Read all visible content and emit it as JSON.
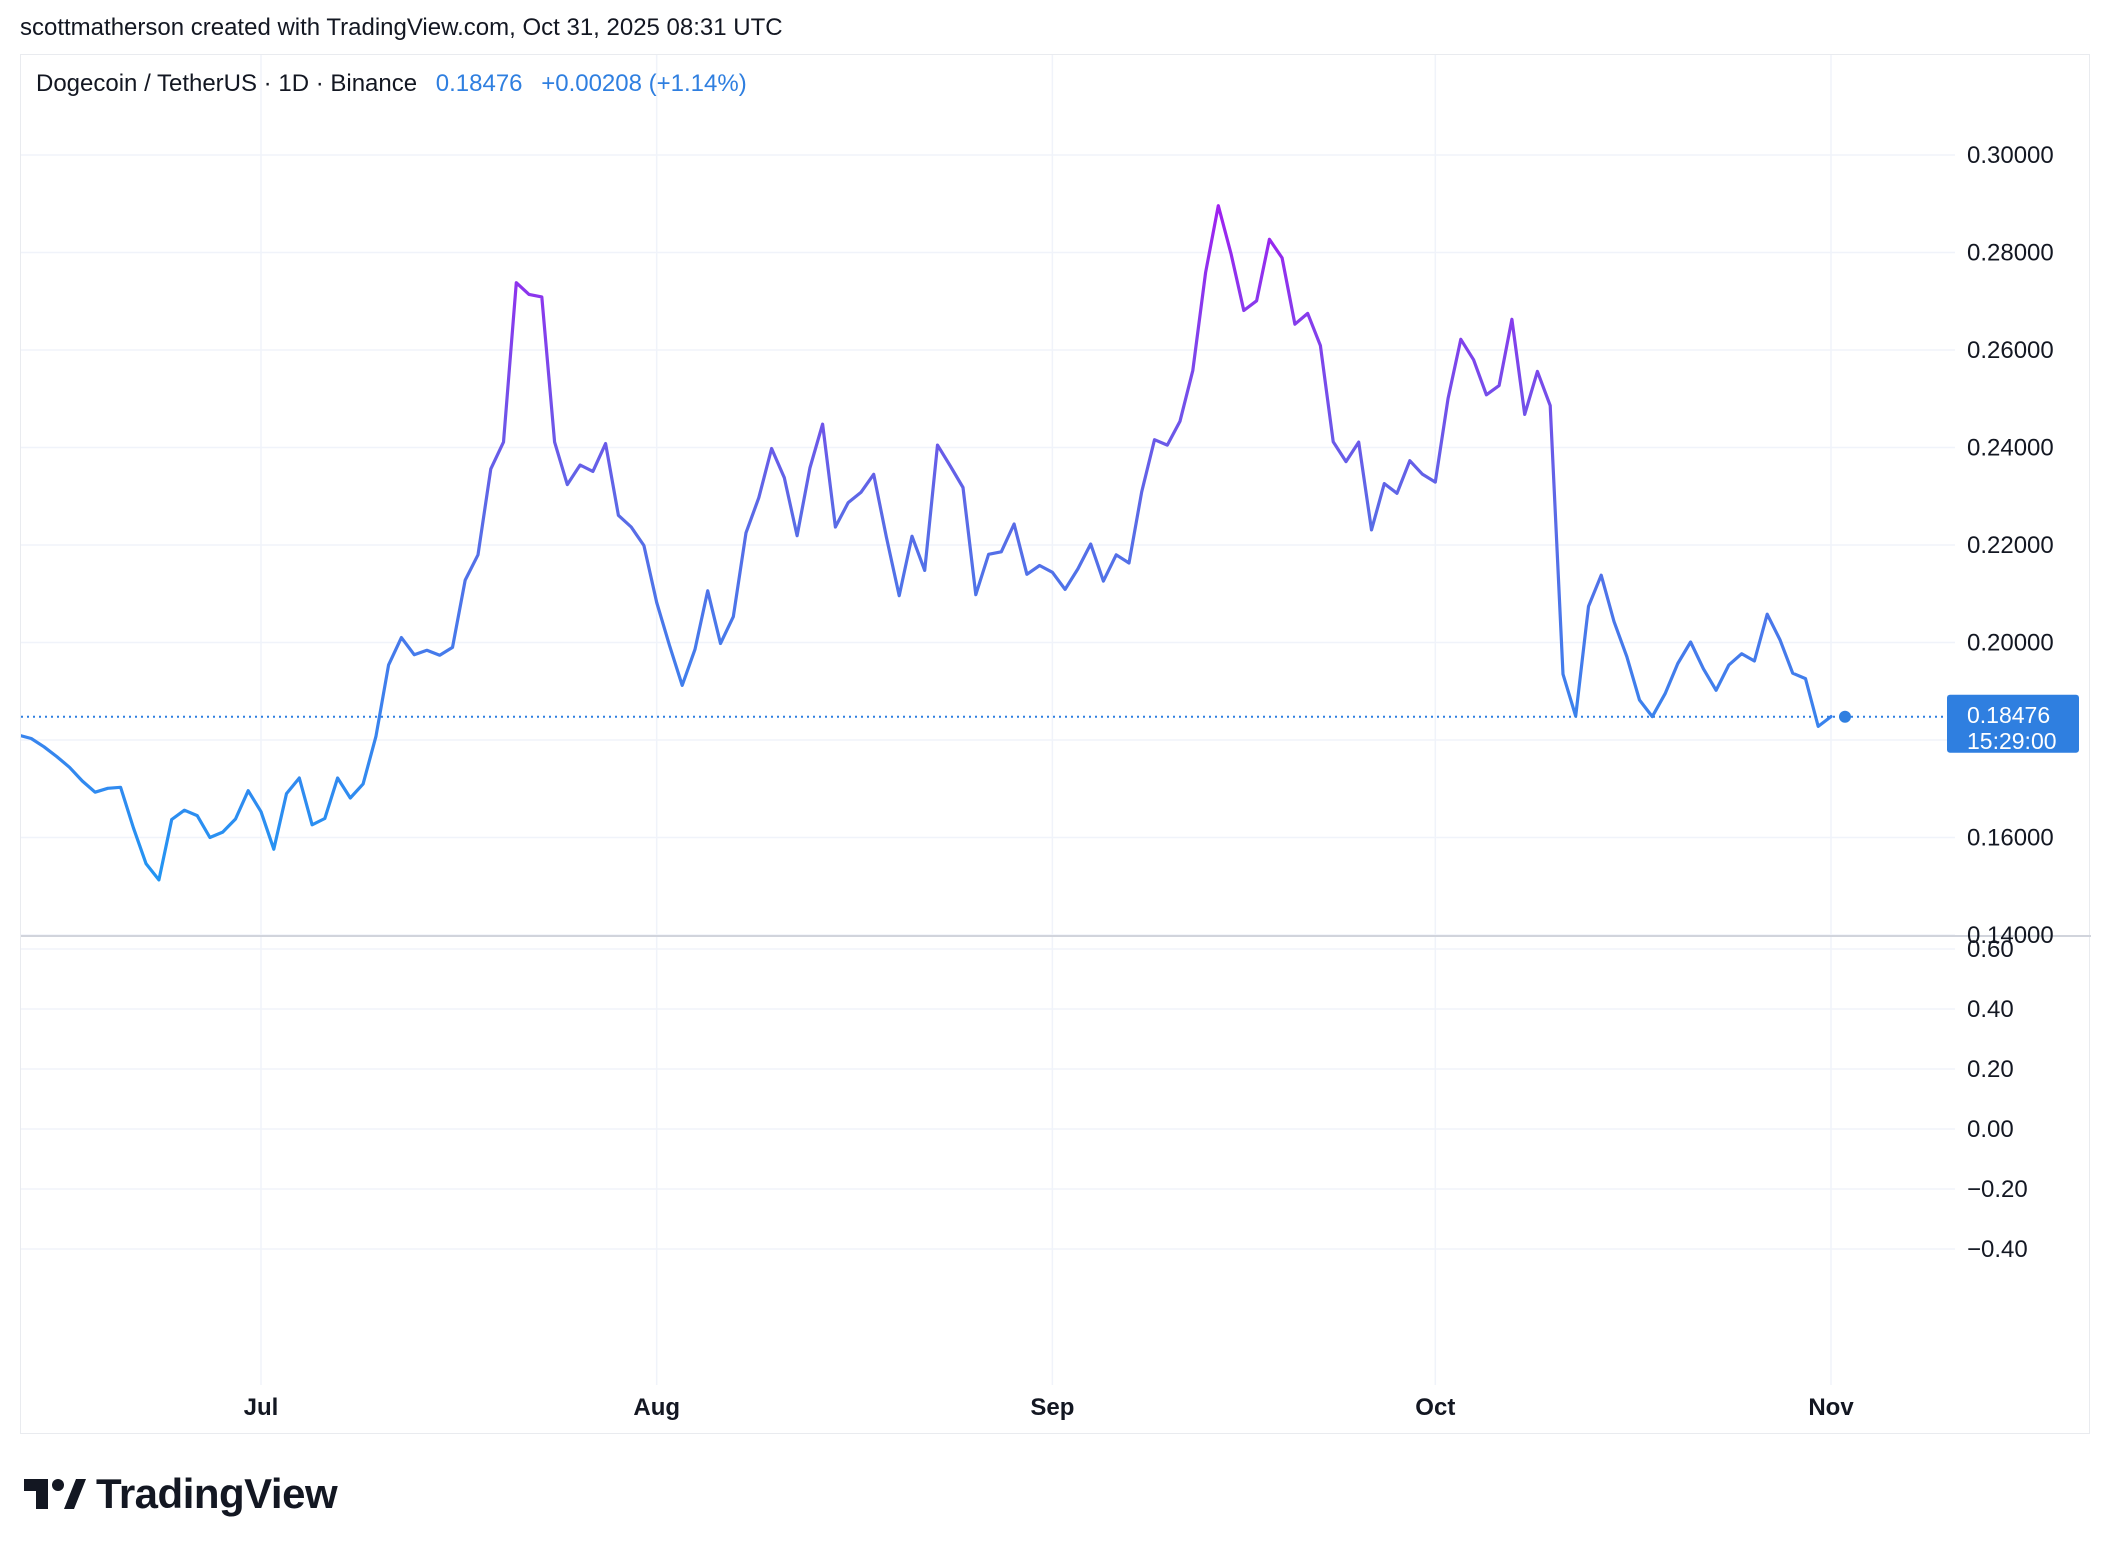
{
  "header": {
    "credit": "scottmatherson created with TradingView.com, Oct 31, 2025 08:31 UTC"
  },
  "legend": {
    "symbol": "Dogecoin / TetherUS · 1D · Binance",
    "last": "0.18476",
    "change": "+0.00208 (+1.14%)"
  },
  "price_tag": {
    "price": "0.18476",
    "countdown": "15:29:00"
  },
  "logo": {
    "text": "TradingView"
  },
  "colors": {
    "line_low": "#2196f3",
    "line_mid": "#5b6ae6",
    "line_high": "#a020f0",
    "accent": "#2f7fe0",
    "tag": "#2f7fe0",
    "grid": "#f0f3fa"
  },
  "chart_data": [
    {
      "type": "line",
      "title": "",
      "ylim": [
        0.14,
        0.3
      ],
      "y_ticks": [
        "0.30000",
        "0.28000",
        "0.26000",
        "0.24000",
        "0.22000",
        "0.20000",
        "0.16000",
        "0.14000"
      ],
      "y_tick_values": [
        0.3,
        0.28,
        0.26,
        0.24,
        0.22,
        0.2,
        0.16,
        0.14
      ],
      "x_ticks": [
        {
          "label": "Jul",
          "date": "2025-07-01"
        },
        {
          "label": "Aug",
          "date": "2025-08-01"
        },
        {
          "label": "Sep",
          "date": "2025-09-01"
        },
        {
          "label": "Oct",
          "date": "2025-10-01"
        },
        {
          "label": "Nov",
          "date": "2025-11-01"
        }
      ],
      "current_value": 0.18476,
      "series": [
        {
          "name": "",
          "start_date": "2025-06-12",
          "interval": "1D",
          "values": [
            0.181,
            0.1803,
            0.1786,
            0.1766,
            0.1744,
            0.1716,
            0.1693,
            0.1701,
            0.1703,
            0.162,
            0.1546,
            0.1513,
            0.1637,
            0.1656,
            0.1645,
            0.16,
            0.1611,
            0.1638,
            0.1696,
            0.1653,
            0.1576,
            0.169,
            0.1722,
            0.1626,
            0.1639,
            0.1722,
            0.1681,
            0.171,
            0.1807,
            0.1954,
            0.201,
            0.1975,
            0.1984,
            0.1974,
            0.199,
            0.2128,
            0.218,
            0.2356,
            0.2411,
            0.2738,
            0.2714,
            0.2709,
            0.2411,
            0.2324,
            0.2364,
            0.2351,
            0.2408,
            0.2261,
            0.2237,
            0.2199,
            0.2082,
            0.1994,
            0.1912,
            0.1986,
            0.2106,
            0.1998,
            0.2053,
            0.2225,
            0.2297,
            0.2398,
            0.2338,
            0.2219,
            0.2358,
            0.2448,
            0.2237,
            0.2287,
            0.2308,
            0.2345,
            0.2216,
            0.2096,
            0.2218,
            0.2148,
            0.2405,
            0.2362,
            0.2318,
            0.2098,
            0.2181,
            0.2186,
            0.2243,
            0.214,
            0.2158,
            0.2144,
            0.2109,
            0.2151,
            0.2202,
            0.2126,
            0.218,
            0.2163,
            0.2309,
            0.2416,
            0.2405,
            0.2454,
            0.2558,
            0.2759,
            0.2896,
            0.2797,
            0.2681,
            0.2701,
            0.2827,
            0.2789,
            0.2653,
            0.2675,
            0.2609,
            0.2412,
            0.2371,
            0.2411,
            0.2231,
            0.2326,
            0.2306,
            0.2373,
            0.2345,
            0.2329,
            0.2501,
            0.2622,
            0.258,
            0.2508,
            0.2527,
            0.2663,
            0.2468,
            0.2556,
            0.2486,
            0.1935,
            0.1849,
            0.2074,
            0.2138,
            0.2043,
            0.1971,
            0.1882,
            0.1848,
            0.1895,
            0.1957,
            0.2001,
            0.1946,
            0.1902,
            0.1954,
            0.1977,
            0.1962,
            0.2058,
            0.2006,
            0.1937,
            0.1926,
            0.1828,
            0.1848
          ]
        }
      ]
    },
    {
      "type": "line",
      "title": "",
      "ylim": [
        -0.6,
        0.6
      ],
      "y_ticks": [
        "0.60",
        "0.40",
        "0.20",
        "0.00",
        "−0.20",
        "−0.40"
      ],
      "y_tick_values": [
        0.6,
        0.4,
        0.2,
        0.0,
        -0.2,
        -0.4
      ],
      "series": []
    }
  ]
}
